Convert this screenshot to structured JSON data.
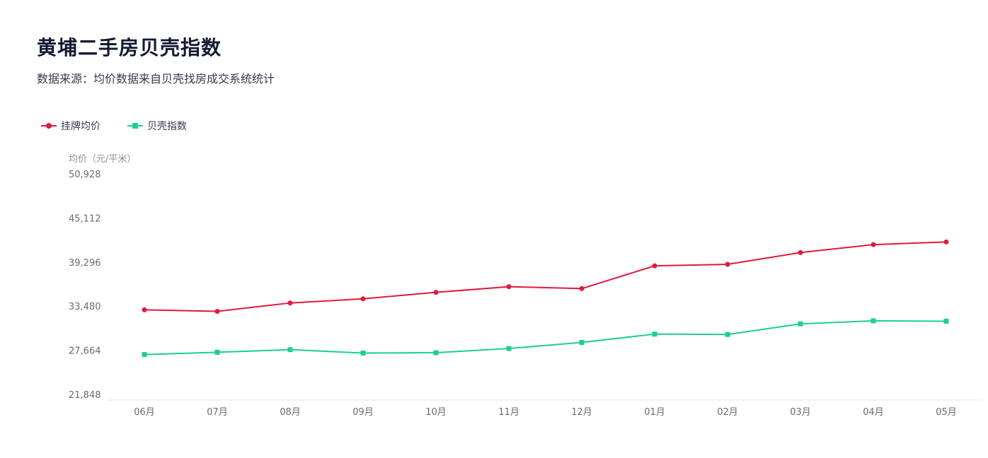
{
  "title": "黄埔二手房贝壳指数",
  "subtitle": "数据来源：均价数据来自贝壳找房成交系统统计",
  "legend": [
    {
      "label": "挂牌均价",
      "color": "#e0193d",
      "marker": "circle"
    },
    {
      "label": "贝壳指数",
      "color": "#1ccf8e",
      "marker": "square"
    }
  ],
  "chart_data": {
    "type": "line",
    "ylabel": "均价（元/平米）",
    "categories": [
      "06月",
      "07月",
      "08月",
      "09月",
      "10月",
      "11月",
      "12月",
      "01月",
      "02月",
      "03月",
      "04月",
      "05月"
    ],
    "y_ticks": [
      "50,928",
      "45,112",
      "39,296",
      "33,480",
      "27,664",
      "21,848"
    ],
    "ylim": [
      21848,
      50928
    ],
    "grid": false,
    "legend_position": "top-left",
    "series": [
      {
        "name": "挂牌均价",
        "color": "#e0193d",
        "marker": "circle",
        "values": [
          33000,
          32800,
          33900,
          34450,
          35300,
          36050,
          35800,
          38800,
          39000,
          40550,
          41600,
          41950
        ]
      },
      {
        "name": "贝壳指数",
        "color": "#1ccf8e",
        "marker": "square",
        "values": [
          27100,
          27400,
          27750,
          27300,
          27350,
          27900,
          28700,
          29800,
          29750,
          31150,
          31550,
          31500
        ]
      }
    ]
  }
}
